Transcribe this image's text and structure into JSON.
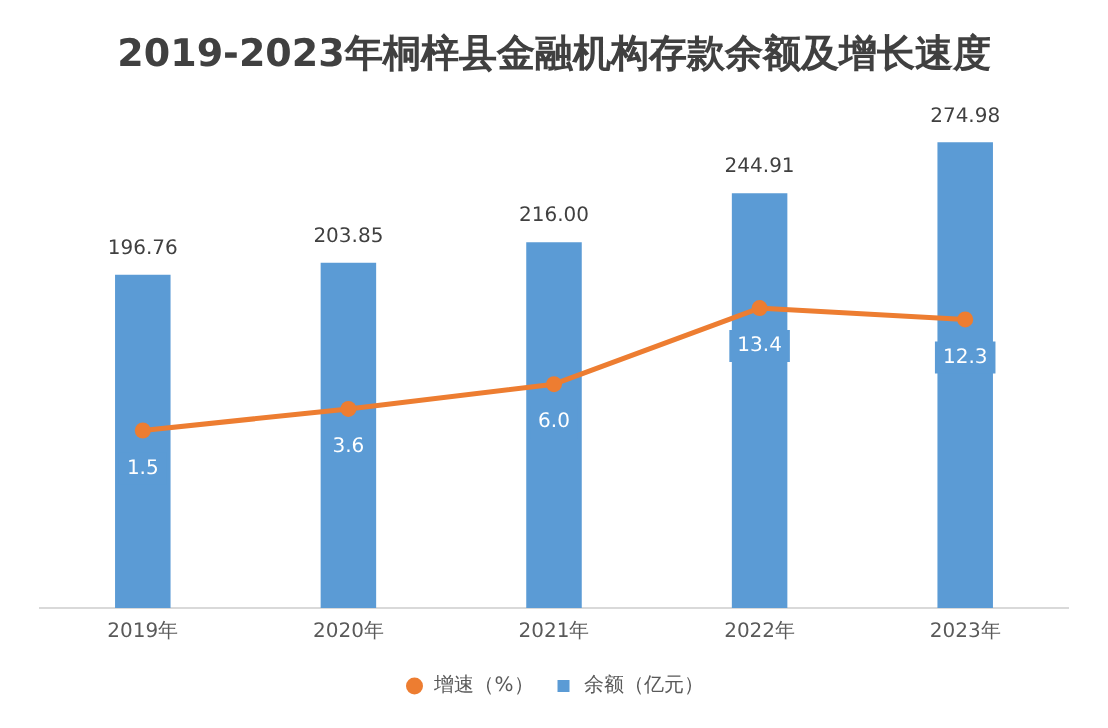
{
  "chart_data": {
    "type": "bar",
    "title": "2019-2023年桐梓县金融机构存款余额及增长速度",
    "categories": [
      "2019年",
      "2020年",
      "2021年",
      "2022年",
      "2023年"
    ],
    "series": [
      {
        "name": "余额（亿元）",
        "color": "#5b9bd5",
        "values": [
          196.76,
          203.85,
          216.0,
          244.91,
          274.98
        ],
        "value_labels": [
          "196.76",
          "203.85",
          "216.00",
          "244.91",
          "274.98"
        ]
      },
      {
        "name": "增速（%）",
        "type": "line",
        "axis": "y2",
        "color": "#ed7d31",
        "values": [
          1.5,
          3.6,
          6.0,
          13.4,
          12.3
        ],
        "value_labels": [
          "1.5",
          "3.6",
          "6.0",
          "13.4",
          "12.3"
        ]
      }
    ],
    "tick_labels": "x",
    "grid": false,
    "legend": "bottom",
    "marker": "circle"
  }
}
